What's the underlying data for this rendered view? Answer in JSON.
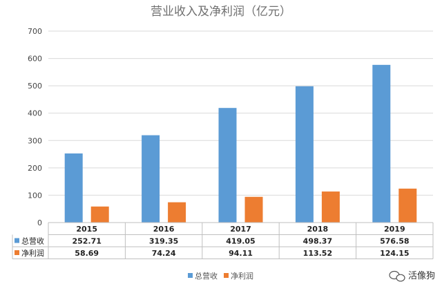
{
  "chart_data": {
    "type": "bar",
    "title": "营业收入及净利润（亿元）",
    "categories": [
      "2015",
      "2016",
      "2017",
      "2018",
      "2019"
    ],
    "series": [
      {
        "name": "总营收",
        "values": [
          252.71,
          319.35,
          419.05,
          498.37,
          576.58
        ],
        "color": "#5b9bd5",
        "labels": [
          "252.71",
          "319.35",
          "419.05",
          "498.37",
          "576.58"
        ]
      },
      {
        "name": "净利润",
        "values": [
          58.69,
          74.24,
          94.11,
          113.52,
          124.15
        ],
        "color": "#ed7d31",
        "labels": [
          "58.69",
          "74.24",
          "94.11",
          "113.52",
          "124.15"
        ]
      }
    ],
    "ylim": [
      0,
      700
    ],
    "yticks": [
      "0",
      "100",
      "200",
      "300",
      "400",
      "500",
      "600",
      "700"
    ],
    "grid": true,
    "legend": "bottom-center",
    "data_table": true
  },
  "watermark": {
    "text": "活像狗",
    "icon": "wechat-icon"
  }
}
